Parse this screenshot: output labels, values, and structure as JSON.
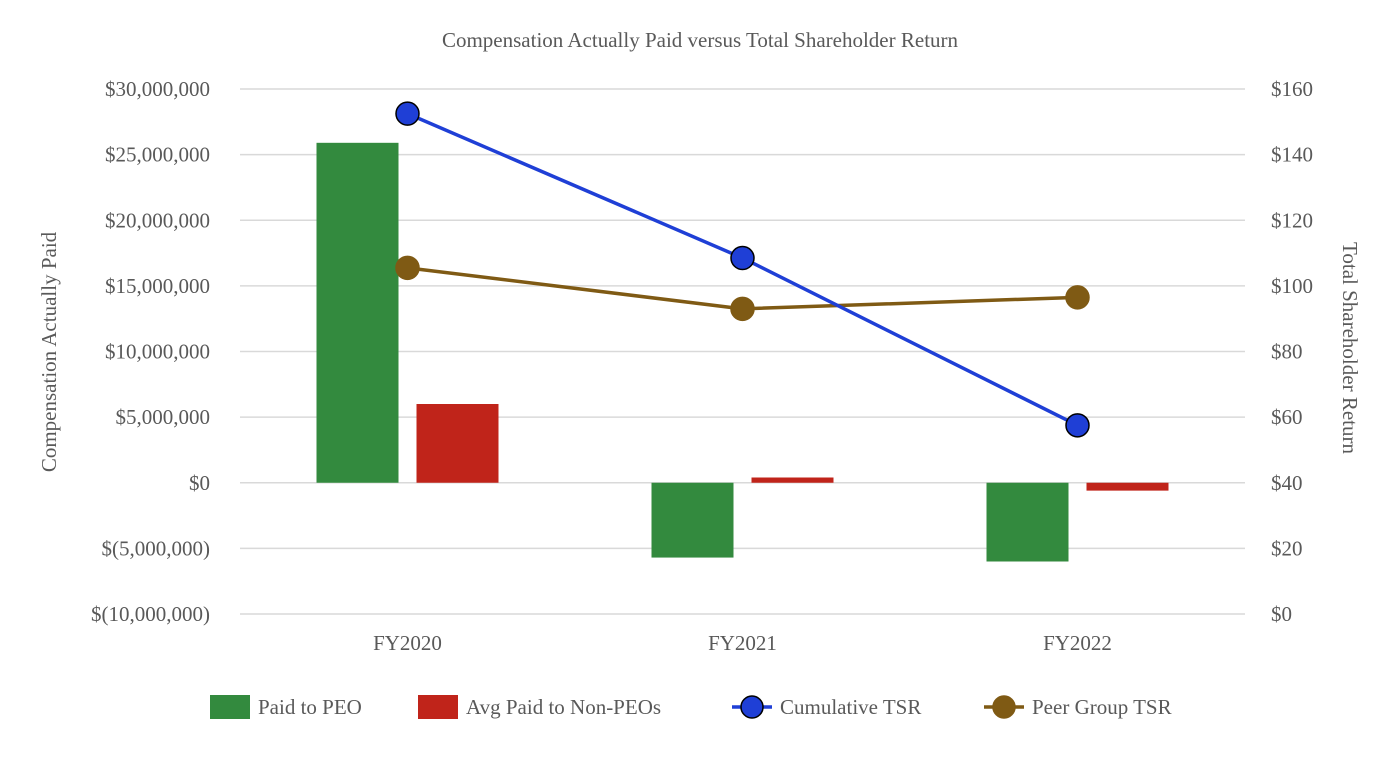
{
  "chart_data": {
    "type": "bar",
    "title": "Compensation Actually Paid versus Total Shareholder Return",
    "categories": [
      "FY2020",
      "FY2021",
      "FY2022"
    ],
    "ylabel": "Compensation Actually Paid",
    "y2label": "Total Shareholder Return",
    "ylim": [
      -10000000,
      30000000
    ],
    "y2lim": [
      0,
      160
    ],
    "yticks": [
      {
        "value": 30000000,
        "label": "$30,000,000"
      },
      {
        "value": 25000000,
        "label": "$25,000,000"
      },
      {
        "value": 20000000,
        "label": "$20,000,000"
      },
      {
        "value": 15000000,
        "label": "$15,000,000"
      },
      {
        "value": 10000000,
        "label": "$10,000,000"
      },
      {
        "value": 5000000,
        "label": "$5,000,000"
      },
      {
        "value": 0,
        "label": "$0"
      },
      {
        "value": -5000000,
        "label": "$(5,000,000)"
      },
      {
        "value": -10000000,
        "label": "$(10,000,000)"
      }
    ],
    "y2ticks": [
      {
        "value": 160,
        "label": "$160"
      },
      {
        "value": 140,
        "label": "$140"
      },
      {
        "value": 120,
        "label": "$120"
      },
      {
        "value": 100,
        "label": "$100"
      },
      {
        "value": 80,
        "label": "$80"
      },
      {
        "value": 60,
        "label": "$60"
      },
      {
        "value": 40,
        "label": "$40"
      },
      {
        "value": 20,
        "label": "$20"
      },
      {
        "value": 0,
        "label": "$0"
      }
    ],
    "grid": true,
    "legend_position": "bottom",
    "series": [
      {
        "name": "Paid to PEO",
        "kind": "bar",
        "axis": "left",
        "color": "#338a3e",
        "values": [
          25900000,
          -5700000,
          -6000000
        ]
      },
      {
        "name": "Avg Paid to Non-PEOs",
        "kind": "bar",
        "axis": "left",
        "color": "#c0241a",
        "values": [
          6000000,
          400000,
          -600000
        ]
      },
      {
        "name": "Cumulative TSR",
        "kind": "line",
        "axis": "right",
        "color": "#1f3fd6",
        "marker_color": "#1f3fd6",
        "values": [
          152.5,
          108.5,
          57.5
        ]
      },
      {
        "name": "Peer Group TSR",
        "kind": "line",
        "axis": "right",
        "color": "#7f5a14",
        "marker_color": "#7f5a14",
        "values": [
          105.5,
          93,
          96.5
        ]
      }
    ]
  }
}
